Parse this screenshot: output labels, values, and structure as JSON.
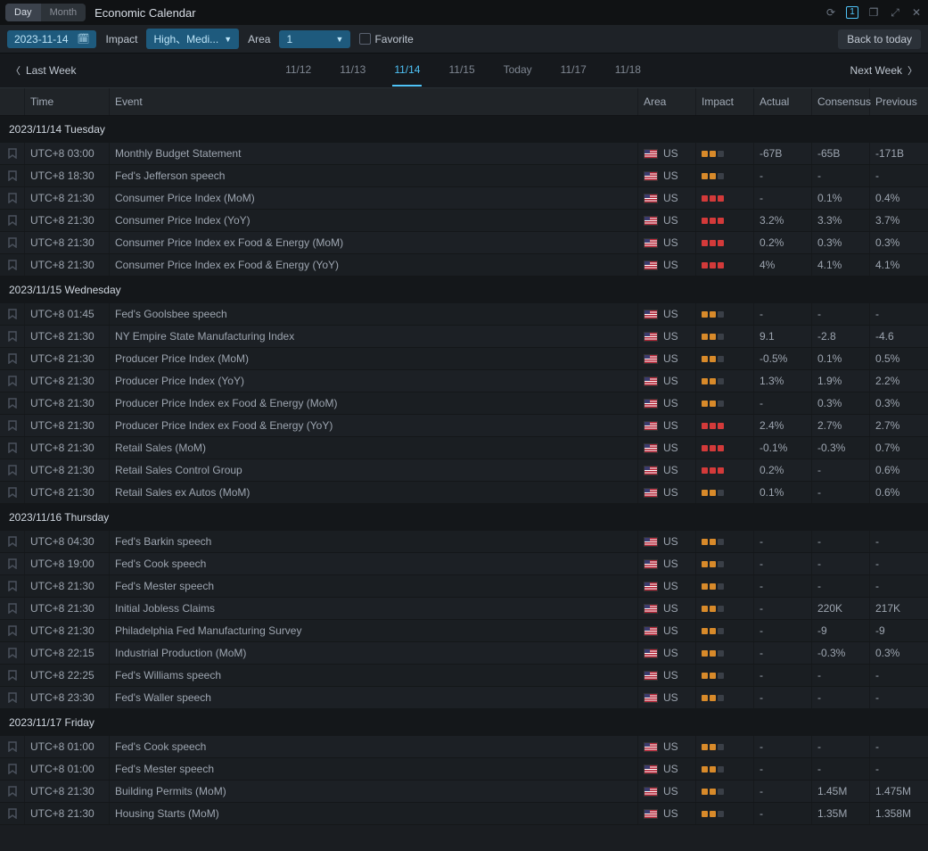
{
  "titlebar": {
    "tabs": {
      "day": "Day",
      "month": "Month"
    },
    "title": "Economic Calendar",
    "badge": "1"
  },
  "toolbar": {
    "date": "2023-11-14",
    "impact_label": "Impact",
    "impact_value": "High、Medi...",
    "area_label": "Area",
    "area_value": "1",
    "favorite_label": "Favorite",
    "back_to_today": "Back to today"
  },
  "week_nav": {
    "prev": "Last Week",
    "next": "Next Week",
    "tabs": [
      {
        "label": "11/12",
        "active": false
      },
      {
        "label": "11/13",
        "active": false
      },
      {
        "label": "11/14",
        "active": true
      },
      {
        "label": "11/15",
        "active": false
      },
      {
        "label": "Today",
        "active": false
      },
      {
        "label": "11/17",
        "active": false
      },
      {
        "label": "11/18",
        "active": false
      }
    ]
  },
  "columns": {
    "time": "Time",
    "event": "Event",
    "area": "Area",
    "impact": "Impact",
    "actual": "Actual",
    "consensus": "Consensus",
    "previous": "Previous"
  },
  "days": [
    {
      "label": "2023/11/14 Tuesday",
      "rows": [
        {
          "time": "UTC+8 03:00",
          "event": "Monthly Budget Statement",
          "area": "US",
          "impact": "med2",
          "actual": "-67B",
          "consensus": "-65B",
          "previous": "-171B"
        },
        {
          "time": "UTC+8 18:30",
          "event": "Fed's Jefferson speech",
          "area": "US",
          "impact": "med2",
          "actual": "-",
          "consensus": "-",
          "previous": "-"
        },
        {
          "time": "UTC+8 21:30",
          "event": "Consumer Price Index (MoM)",
          "area": "US",
          "impact": "high3",
          "actual": "-",
          "consensus": "0.1%",
          "previous": "0.4%"
        },
        {
          "time": "UTC+8 21:30",
          "event": "Consumer Price Index (YoY)",
          "area": "US",
          "impact": "high3",
          "actual": "3.2%",
          "consensus": "3.3%",
          "previous": "3.7%"
        },
        {
          "time": "UTC+8 21:30",
          "event": "Consumer Price Index ex Food & Energy (MoM)",
          "area": "US",
          "impact": "high3",
          "actual": "0.2%",
          "consensus": "0.3%",
          "previous": "0.3%"
        },
        {
          "time": "UTC+8 21:30",
          "event": "Consumer Price Index ex Food & Energy (YoY)",
          "area": "US",
          "impact": "high3",
          "actual": "4%",
          "consensus": "4.1%",
          "previous": "4.1%"
        }
      ]
    },
    {
      "label": "2023/11/15 Wednesday",
      "rows": [
        {
          "time": "UTC+8 01:45",
          "event": "Fed's Goolsbee speech",
          "area": "US",
          "impact": "med2",
          "actual": "-",
          "consensus": "-",
          "previous": "-"
        },
        {
          "time": "UTC+8 21:30",
          "event": "NY Empire State Manufacturing Index",
          "area": "US",
          "impact": "med2",
          "actual": "9.1",
          "consensus": "-2.8",
          "previous": "-4.6"
        },
        {
          "time": "UTC+8 21:30",
          "event": "Producer Price Index (MoM)",
          "area": "US",
          "impact": "med2",
          "actual": "-0.5%",
          "consensus": "0.1%",
          "previous": "0.5%"
        },
        {
          "time": "UTC+8 21:30",
          "event": "Producer Price Index (YoY)",
          "area": "US",
          "impact": "med2",
          "actual": "1.3%",
          "consensus": "1.9%",
          "previous": "2.2%"
        },
        {
          "time": "UTC+8 21:30",
          "event": "Producer Price Index ex Food & Energy (MoM)",
          "area": "US",
          "impact": "med2",
          "actual": "-",
          "consensus": "0.3%",
          "previous": "0.3%"
        },
        {
          "time": "UTC+8 21:30",
          "event": "Producer Price Index ex Food & Energy (YoY)",
          "area": "US",
          "impact": "high3",
          "actual": "2.4%",
          "consensus": "2.7%",
          "previous": "2.7%"
        },
        {
          "time": "UTC+8 21:30",
          "event": "Retail Sales (MoM)",
          "area": "US",
          "impact": "high3",
          "actual": "-0.1%",
          "consensus": "-0.3%",
          "previous": "0.7%"
        },
        {
          "time": "UTC+8 21:30",
          "event": "Retail Sales Control Group",
          "area": "US",
          "impact": "high3",
          "actual": "0.2%",
          "consensus": "-",
          "previous": "0.6%"
        },
        {
          "time": "UTC+8 21:30",
          "event": "Retail Sales ex Autos (MoM)",
          "area": "US",
          "impact": "med2",
          "actual": "0.1%",
          "consensus": "-",
          "previous": "0.6%"
        }
      ]
    },
    {
      "label": "2023/11/16 Thursday",
      "rows": [
        {
          "time": "UTC+8 04:30",
          "event": "Fed's Barkin speech",
          "area": "US",
          "impact": "med2",
          "actual": "-",
          "consensus": "-",
          "previous": "-"
        },
        {
          "time": "UTC+8 19:00",
          "event": "Fed's Cook speech",
          "area": "US",
          "impact": "med2",
          "actual": "-",
          "consensus": "-",
          "previous": "-"
        },
        {
          "time": "UTC+8 21:30",
          "event": "Fed's Mester speech",
          "area": "US",
          "impact": "med2",
          "actual": "-",
          "consensus": "-",
          "previous": "-"
        },
        {
          "time": "UTC+8 21:30",
          "event": "Initial Jobless Claims",
          "area": "US",
          "impact": "med2",
          "actual": "-",
          "consensus": "220K",
          "previous": "217K"
        },
        {
          "time": "UTC+8 21:30",
          "event": "Philadelphia Fed Manufacturing Survey",
          "area": "US",
          "impact": "med2",
          "actual": "-",
          "consensus": "-9",
          "previous": "-9"
        },
        {
          "time": "UTC+8 22:15",
          "event": "Industrial Production (MoM)",
          "area": "US",
          "impact": "med2",
          "actual": "-",
          "consensus": "-0.3%",
          "previous": "0.3%"
        },
        {
          "time": "UTC+8 22:25",
          "event": "Fed's Williams speech",
          "area": "US",
          "impact": "med2",
          "actual": "-",
          "consensus": "-",
          "previous": "-"
        },
        {
          "time": "UTC+8 23:30",
          "event": "Fed's Waller speech",
          "area": "US",
          "impact": "med2",
          "actual": "-",
          "consensus": "-",
          "previous": "-"
        }
      ]
    },
    {
      "label": "2023/11/17 Friday",
      "rows": [
        {
          "time": "UTC+8 01:00",
          "event": "Fed's Cook speech",
          "area": "US",
          "impact": "med2",
          "actual": "-",
          "consensus": "-",
          "previous": "-"
        },
        {
          "time": "UTC+8 01:00",
          "event": "Fed's Mester speech",
          "area": "US",
          "impact": "med2",
          "actual": "-",
          "consensus": "-",
          "previous": "-"
        },
        {
          "time": "UTC+8 21:30",
          "event": "Building Permits (MoM)",
          "area": "US",
          "impact": "med2",
          "actual": "-",
          "consensus": "1.45M",
          "previous": "1.475M"
        },
        {
          "time": "UTC+8 21:30",
          "event": "Housing Starts (MoM)",
          "area": "US",
          "impact": "med2",
          "actual": "-",
          "consensus": "1.35M",
          "previous": "1.358M"
        }
      ]
    }
  ],
  "impact_styles": {
    "med2": [
      "imp-med",
      "imp-med",
      "imp-off"
    ],
    "high3": [
      "imp-high",
      "imp-high",
      "imp-high"
    ]
  }
}
